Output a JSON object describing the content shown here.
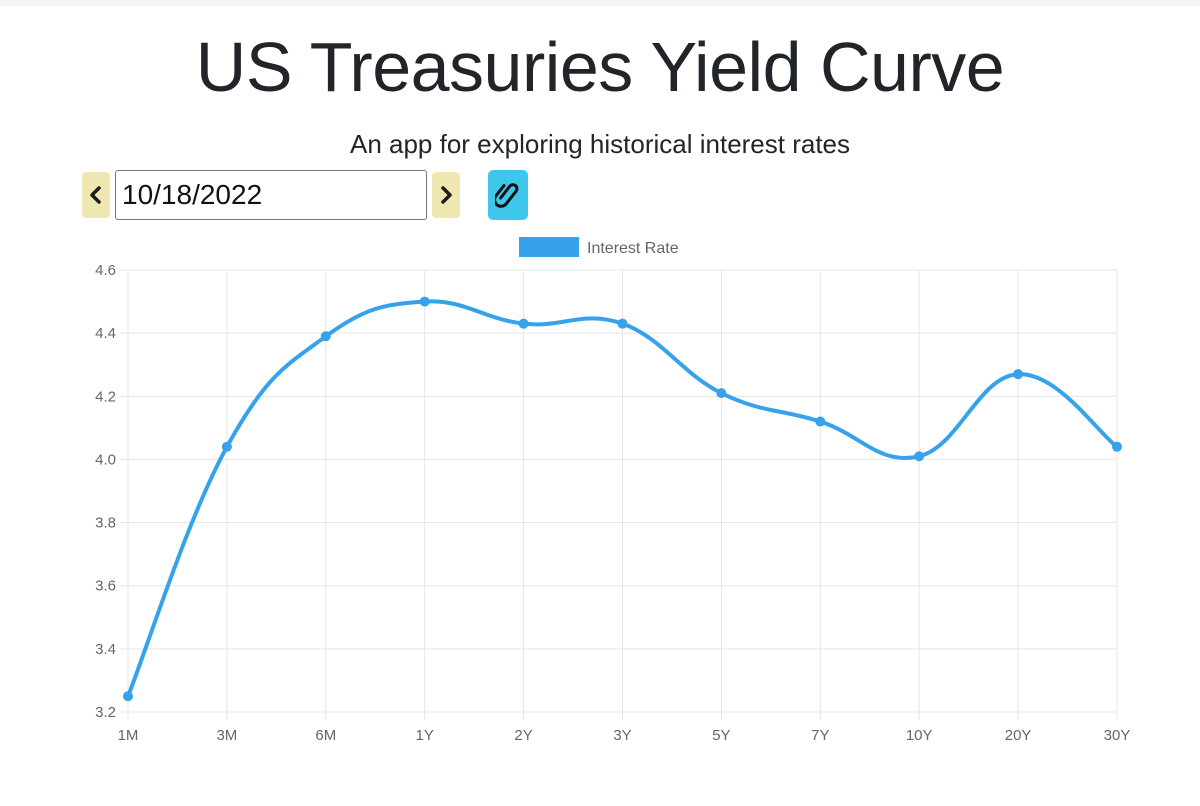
{
  "header": {
    "title": "US Treasuries Yield Curve",
    "subtitle": "An app for exploring historical interest rates"
  },
  "controls": {
    "date_value": "10/18/2022",
    "prev_icon": "chevron-left-icon",
    "next_icon": "chevron-right-icon",
    "link_icon": "paperclip-icon"
  },
  "colors": {
    "accent": "#36a2eb",
    "nav_button": "#efe7b0",
    "link_button": "#3fc6ec",
    "grid": "#e5e5e5",
    "tick_text": "#666666"
  },
  "chart_data": {
    "type": "line",
    "title": "",
    "xlabel": "",
    "ylabel": "",
    "categories": [
      "1M",
      "3M",
      "6M",
      "1Y",
      "2Y",
      "3Y",
      "5Y",
      "7Y",
      "10Y",
      "20Y",
      "30Y"
    ],
    "series": [
      {
        "name": "Interest Rate",
        "values": [
          3.25,
          4.04,
          4.39,
          4.5,
          4.43,
          4.43,
          4.21,
          4.12,
          4.01,
          4.27,
          4.04
        ]
      }
    ],
    "ylim": [
      3.2,
      4.6
    ],
    "yticks": [
      "4.6",
      "4.4",
      "4.2",
      "4.0",
      "3.8",
      "3.6",
      "3.4",
      "3.2"
    ],
    "grid": true,
    "legend_position": "top-center"
  }
}
